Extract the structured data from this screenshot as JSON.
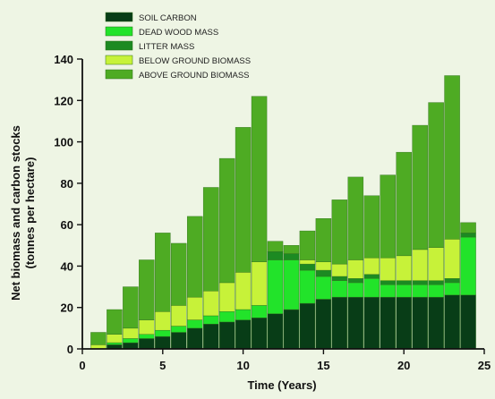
{
  "chart_data": {
    "type": "bar",
    "stacked": true,
    "title": "",
    "xlabel": "Time (Years)",
    "ylabel": "Net biomass and carbon stocks",
    "ylabel_sub": "(tonnes per hectare)",
    "xlim": [
      0,
      25
    ],
    "ylim": [
      0,
      140
    ],
    "xticks": [
      0,
      5,
      10,
      15,
      20,
      25
    ],
    "yticks": [
      0,
      20,
      40,
      60,
      80,
      100,
      120,
      140
    ],
    "grid": false,
    "legend_position": "top-left",
    "x": [
      1,
      2,
      3,
      4,
      5,
      6,
      7,
      8,
      9,
      10,
      11,
      12,
      13,
      14,
      15,
      16,
      17,
      18,
      19,
      20,
      21,
      22,
      23,
      24
    ],
    "series": [
      {
        "name": "SOIL CARBON",
        "color": "#083d17",
        "values": [
          0,
          2,
          3,
          5,
          6,
          8,
          10,
          12,
          13,
          14,
          15,
          17,
          19,
          22,
          24,
          25,
          25,
          25,
          25,
          25,
          25,
          25,
          26,
          26
        ]
      },
      {
        "name": "DEAD WOOD MASS",
        "color": "#22e32a",
        "values": [
          0,
          1,
          2,
          2,
          3,
          3,
          4,
          4,
          5,
          5,
          6,
          26,
          24,
          16,
          11,
          8,
          7,
          9,
          6,
          6,
          6,
          6,
          6,
          28
        ]
      },
      {
        "name": "LITTER MASS",
        "color": "#1c8a22",
        "values": [
          0,
          0,
          0,
          0,
          0,
          0,
          0,
          0,
          0,
          0,
          0,
          4,
          3,
          3,
          3,
          2,
          2,
          2,
          2,
          2,
          2,
          2,
          2,
          2
        ]
      },
      {
        "name": "BELOW GROUND BIOMASS",
        "color": "#c7f239",
        "values": [
          2,
          4,
          5,
          7,
          9,
          10,
          11,
          12,
          14,
          18,
          21,
          0,
          0,
          2,
          4,
          6,
          9,
          8,
          11,
          12,
          15,
          16,
          19,
          0
        ]
      },
      {
        "name": "ABOVE GROUND BIOMASS",
        "color": "#4eab23",
        "values": [
          6,
          12,
          20,
          29,
          38,
          30,
          39,
          50,
          60,
          70,
          80,
          5,
          4,
          14,
          21,
          31,
          40,
          30,
          40,
          50,
          60,
          70,
          79,
          5
        ]
      }
    ]
  },
  "colors": {
    "background": "#eef5e4",
    "axis": "#111111"
  }
}
